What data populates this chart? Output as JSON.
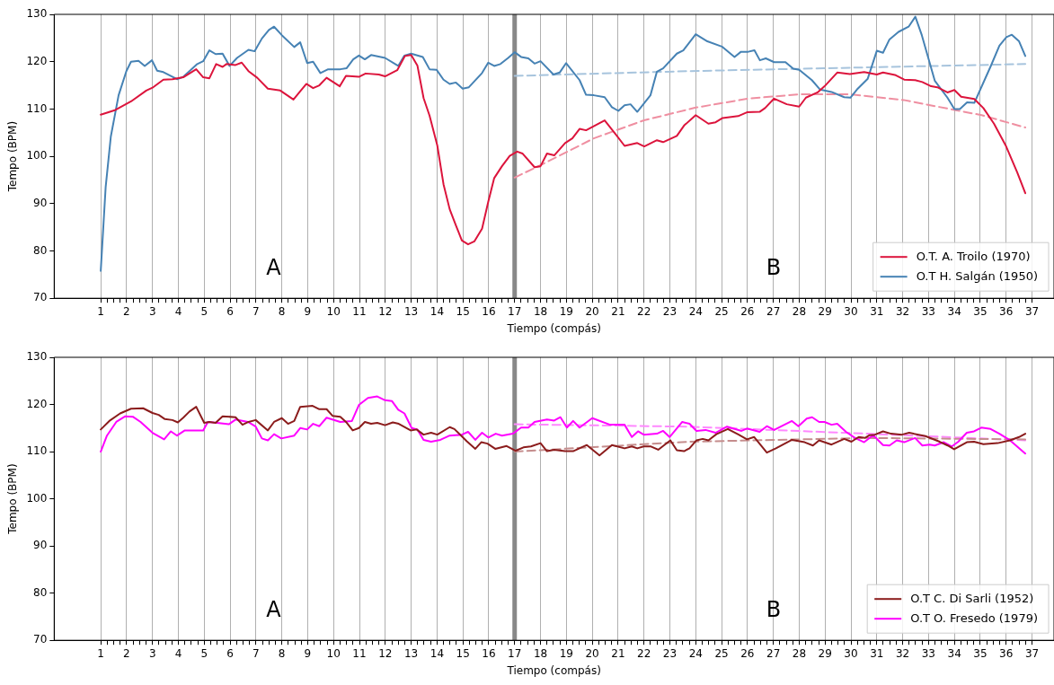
{
  "chart_data": [
    {
      "type": "line",
      "xlabel": "Tiempo (compás)",
      "ylabel": "Tempo (BPM)",
      "xlim": [
        -0.8,
        37.85
      ],
      "ylim": [
        70,
        130
      ],
      "yticks": [
        70,
        80,
        90,
        100,
        110,
        120,
        130
      ],
      "xticks": [
        1,
        {
          "value": 1.25,
          "label": null
        },
        {
          "value": 1.5,
          "label": null
        },
        {
          "value": 1.75,
          "label": null
        },
        2,
        {
          "value": 2.25,
          "label": null
        },
        {
          "value": 2.5,
          "label": null
        },
        {
          "value": 2.75,
          "label": null
        },
        3,
        {
          "value": 3.25,
          "label": null
        },
        {
          "value": 3.5,
          "label": null
        },
        {
          "value": 3.75,
          "label": null
        },
        4,
        {
          "value": 4.25,
          "label": null
        },
        {
          "value": 4.5,
          "label": null
        },
        {
          "value": 4.75,
          "label": null
        },
        5,
        {
          "value": 5.25,
          "label": null
        },
        {
          "value": 5.5,
          "label": null
        },
        {
          "value": 5.75,
          "label": null
        },
        6,
        {
          "value": 6.25,
          "label": null
        },
        {
          "value": 6.5,
          "label": null
        },
        {
          "value": 6.75,
          "label": null
        },
        7,
        {
          "value": 7.25,
          "label": null
        },
        {
          "value": 7.5,
          "label": null
        },
        {
          "value": 7.75,
          "label": null
        },
        8,
        {
          "value": 8.25,
          "label": null
        },
        {
          "value": 8.5,
          "label": null
        },
        {
          "value": 8.75,
          "label": null
        },
        9,
        {
          "value": 9.25,
          "label": null
        },
        {
          "value": 9.5,
          "label": null
        },
        {
          "value": 9.75,
          "label": null
        },
        10,
        {
          "value": 10.25,
          "label": null
        },
        {
          "value": 10.5,
          "label": null
        },
        {
          "value": 10.75,
          "label": null
        },
        11,
        {
          "value": 11.25,
          "label": null
        },
        {
          "value": 11.5,
          "label": null
        },
        {
          "value": 11.75,
          "label": null
        },
        12,
        {
          "value": 12.25,
          "label": null
        },
        {
          "value": 12.5,
          "label": null
        },
        {
          "value": 12.75,
          "label": null
        },
        13,
        {
          "value": 13.25,
          "label": null
        },
        {
          "value": 13.5,
          "label": null
        },
        {
          "value": 13.75,
          "label": null
        },
        14,
        {
          "value": 14.25,
          "label": null
        },
        {
          "value": 14.5,
          "label": null
        },
        {
          "value": 14.75,
          "label": null
        },
        15,
        {
          "value": 15.25,
          "label": null
        },
        {
          "value": 15.5,
          "label": null
        },
        {
          "value": 15.75,
          "label": null
        },
        16,
        {
          "value": 16.25,
          "label": null
        },
        {
          "value": 16.5,
          "label": null
        },
        {
          "value": 16.75,
          "label": null
        },
        17,
        {
          "value": 17.25,
          "label": null
        },
        {
          "value": 17.5,
          "label": null
        },
        {
          "value": 17.75,
          "label": null
        },
        18,
        {
          "value": 18.25,
          "label": null
        },
        {
          "value": 18.5,
          "label": null
        },
        {
          "value": 18.75,
          "label": null
        },
        19,
        {
          "value": 19.25,
          "label": null
        },
        {
          "value": 19.5,
          "label": null
        },
        {
          "value": 19.75,
          "label": null
        },
        20,
        {
          "value": 20.25,
          "label": null
        },
        {
          "value": 20.5,
          "label": null
        },
        {
          "value": 20.75,
          "label": null
        },
        21,
        {
          "value": 21.25,
          "label": null
        },
        {
          "value": 21.5,
          "label": null
        },
        {
          "value": 21.75,
          "label": null
        },
        22,
        {
          "value": 22.25,
          "label": null
        },
        {
          "value": 22.5,
          "label": null
        },
        {
          "value": 22.75,
          "label": null
        },
        23,
        {
          "value": 23.25,
          "label": null
        },
        {
          "value": 23.5,
          "label": null
        },
        {
          "value": 23.75,
          "label": null
        },
        24,
        {
          "value": 24.25,
          "label": null
        },
        {
          "value": 24.5,
          "label": null
        },
        {
          "value": 24.75,
          "label": null
        },
        25,
        {
          "value": 25.25,
          "label": null
        },
        {
          "value": 25.5,
          "label": null
        },
        {
          "value": 25.75,
          "label": null
        },
        26,
        {
          "value": 26.25,
          "label": null
        },
        {
          "value": 26.5,
          "label": null
        },
        {
          "value": 26.75,
          "label": null
        },
        27,
        {
          "value": 27.25,
          "label": null
        },
        {
          "value": 27.5,
          "label": null
        },
        {
          "value": 27.75,
          "label": null
        },
        28,
        {
          "value": 28.25,
          "label": null
        },
        {
          "value": 28.5,
          "label": null
        },
        {
          "value": 28.75,
          "label": null
        },
        29,
        {
          "value": 29.25,
          "label": null
        },
        {
          "value": 29.5,
          "label": null
        },
        {
          "value": 29.75,
          "label": null
        },
        30,
        {
          "value": 30.25,
          "label": null
        },
        {
          "value": 30.5,
          "label": null
        },
        {
          "value": 30.75,
          "label": null
        },
        31,
        {
          "value": 31.25,
          "label": null
        },
        {
          "value": 31.5,
          "label": null
        },
        {
          "value": 31.75,
          "label": null
        },
        32,
        {
          "value": 32.25,
          "label": null
        },
        {
          "value": 32.5,
          "label": null
        },
        {
          "value": 32.75,
          "label": null
        },
        33,
        {
          "value": 33.25,
          "label": null
        },
        {
          "value": 33.5,
          "label": null
        },
        {
          "value": 33.75,
          "label": null
        },
        34,
        {
          "value": 34.25,
          "label": null
        },
        {
          "value": 34.5,
          "label": null
        },
        {
          "value": 34.75,
          "label": null
        },
        35,
        {
          "value": 35.25,
          "label": null
        },
        {
          "value": 35.5,
          "label": null
        },
        {
          "value": 35.75,
          "label": null
        },
        36,
        {
          "value": 36.25,
          "label": null
        },
        {
          "value": 36.5,
          "label": null
        },
        {
          "value": 36.75,
          "label": null
        },
        37
      ],
      "grid": "x",
      "legend": "bottom right",
      "marker": "none",
      "line_style": "solid",
      "ref_lines": [
        {
          "axis": "x",
          "value": 17,
          "color": "#888888"
        }
      ],
      "annotations": [
        "A",
        "B"
      ],
      "series": [
        {
          "name": "O.T. A. Troilo (1970)",
          "color": "#dc143c",
          "x": [
            1,
            1.57,
            2.17,
            2.76,
            3,
            3.42,
            3.77,
            4.19,
            4.69,
            4.96,
            5.2,
            5.46,
            5.71,
            5.86,
            6.21,
            6.45,
            6.71,
            7.05,
            7.46,
            7.94,
            8.45,
            8.69,
            8.95,
            9.21,
            9.45,
            9.73,
            10.24,
            10.48,
            10.98,
            11.24,
            11.75,
            11.99,
            12.46,
            12.76,
            13,
            13.24,
            13.48,
            13.71,
            14.01,
            14.25,
            14.49,
            14.73,
            14.96,
            15.2,
            15.44,
            15.74,
            15.98,
            16.21,
            16.51,
            16.81,
            17.1,
            17.3,
            17.77,
            18,
            18.25,
            18.53,
            18.95,
            19.23,
            19.51,
            19.76,
            20.48,
            20.9,
            21.25,
            21.74,
            22.01,
            22.5,
            22.74,
            23.27,
            23.55,
            24,
            24.49,
            24.77,
            25.04,
            25.64,
            25.98,
            26.47,
            26.68,
            27.03,
            27.52,
            28,
            28.26,
            28.71,
            28.98,
            29.47,
            29.96,
            30.51,
            31,
            31.24,
            31.7,
            32.06,
            32.48,
            32.76,
            33.1,
            33.34,
            33.73,
            34,
            34.26,
            34.77,
            35.12,
            35.53,
            36,
            36.43,
            36.74
          ],
          "values": [
            108.8,
            109.8,
            111.6,
            113.9,
            114.5,
            116.2,
            116.3,
            116.7,
            118.4,
            116.7,
            116.5,
            119.5,
            118.9,
            119.5,
            119.3,
            119.8,
            118,
            116.6,
            114.3,
            113.9,
            112,
            113.6,
            115.3,
            114.4,
            115,
            116.6,
            114.8,
            117,
            116.8,
            117.5,
            117.3,
            116.9,
            118.2,
            121.2,
            121.4,
            119.2,
            112.3,
            108.6,
            102.3,
            94.1,
            88.8,
            85.4,
            82.2,
            81.4,
            82,
            84.7,
            90.4,
            95.4,
            97.9,
            100.1,
            101,
            100.6,
            97.7,
            97.9,
            100.6,
            100.2,
            102.8,
            103.8,
            105.8,
            105.5,
            107.6,
            104.7,
            102.2,
            102.8,
            102.1,
            103.4,
            103,
            104.3,
            106.5,
            108.7,
            106.9,
            107.2,
            108.1,
            108.5,
            109.3,
            109.4,
            110.2,
            112.2,
            111,
            110.5,
            112.4,
            113.5,
            114.8,
            117.7,
            117.4,
            117.8,
            117.3,
            117.7,
            117.2,
            116.2,
            116.1,
            115.7,
            114.8,
            114.6,
            113.5,
            114,
            112.6,
            112.1,
            110.2,
            106.9,
            102.1,
            96.6,
            92.2
          ]
        },
        {
          "name": "O.T H. Salgán (1950)",
          "color": "#4682b4",
          "x": [
            1,
            1.19,
            1.39,
            1.69,
            1.99,
            2.17,
            2.46,
            2.7,
            2.98,
            3.18,
            3.42,
            3.95,
            4.19,
            4.43,
            4.73,
            4.96,
            5.2,
            5.44,
            5.71,
            5.98,
            6.27,
            6.71,
            6.95,
            7.23,
            7.5,
            7.7,
            8,
            8.48,
            8.71,
            8.98,
            9.21,
            9.49,
            9.79,
            10.26,
            10.5,
            10.76,
            10.98,
            11.21,
            11.45,
            11.99,
            12.5,
            12.74,
            13,
            13.45,
            13.71,
            13.98,
            14.25,
            14.49,
            14.73,
            14.99,
            15.23,
            15.74,
            15.98,
            16.21,
            16.45,
            16.75,
            17,
            17.25,
            17.53,
            17.77,
            18,
            18.5,
            18.74,
            18.99,
            19.51,
            19.76,
            20.06,
            20.48,
            20.76,
            21.01,
            21.25,
            21.48,
            21.74,
            22.25,
            22.5,
            22.74,
            23.27,
            23.52,
            24,
            24.45,
            25.01,
            25.5,
            25.75,
            26.03,
            26.27,
            26.48,
            26.71,
            27.03,
            27.47,
            27.77,
            28,
            28.49,
            28.81,
            29.25,
            29.74,
            29.98,
            30.23,
            30.65,
            31,
            31.24,
            31.49,
            31.84,
            32.23,
            32.49,
            32.74,
            33.24,
            33.73,
            34,
            34.21,
            34.49,
            34.77,
            35.4,
            35.74,
            36.01,
            36.22,
            36.5,
            36.74
          ],
          "values": [
            75.8,
            93.5,
            104.2,
            112.9,
            118,
            120,
            120.2,
            119.1,
            120.3,
            118.1,
            117.8,
            116.3,
            116.8,
            118,
            119.5,
            120.1,
            122.4,
            121.6,
            121.7,
            119.1,
            120.8,
            122.5,
            122.2,
            124.9,
            126.7,
            127.4,
            125.6,
            123.1,
            124.1,
            119.7,
            120,
            117.6,
            118.4,
            118.4,
            118.6,
            120.5,
            121.3,
            120.5,
            121.4,
            120.8,
            119.1,
            121.3,
            121.7,
            121,
            118.4,
            118.3,
            116.2,
            115.3,
            115.6,
            114.3,
            114.6,
            117.6,
            119.8,
            119.1,
            119.5,
            120.8,
            122,
            121,
            120.7,
            119.6,
            120.1,
            117.3,
            117.7,
            119.7,
            116.1,
            113,
            112.9,
            112.5,
            110.4,
            109.6,
            110.8,
            111,
            109.4,
            112.9,
            117.9,
            118.6,
            121.7,
            122.4,
            125.8,
            124.3,
            123.2,
            121,
            122.1,
            122.1,
            122.4,
            120.3,
            120.7,
            119.9,
            119.9,
            118.5,
            118.3,
            116.1,
            114.1,
            113.6,
            112.5,
            112.4,
            114.1,
            116.4,
            122.3,
            121.9,
            124.7,
            126.3,
            127.4,
            129.5,
            125.6,
            116,
            112.4,
            110,
            110,
            111.4,
            111.3,
            119,
            123.4,
            125.2,
            125.7,
            124.3,
            121.2
          ]
        },
        {
          "color": "#ef8fa1",
          "line_style": "dashed",
          "x": [
            17,
            18.1,
            20.06,
            22,
            24,
            26.04,
            28,
            30,
            32.04,
            34,
            35.05,
            36.74
          ],
          "values": [
            95.5,
            98.4,
            103.8,
            107.6,
            110.3,
            112.2,
            113.1,
            113.1,
            111.9,
            109.8,
            108.7,
            106.1
          ]
        },
        {
          "color": "#a7c4dd",
          "line_style": "dashed",
          "x": [
            17,
            23.7,
            30.65,
            36.74
          ],
          "values": [
            117,
            118,
            118.8,
            119.5
          ]
        }
      ]
    },
    {
      "type": "line",
      "xlabel": "Tiempo (compás)",
      "ylabel": "Tempo (BPM)",
      "xlim": [
        -0.8,
        37.85
      ],
      "ylim": [
        70,
        130
      ],
      "yticks": [
        70,
        80,
        90,
        100,
        110,
        120,
        130
      ],
      "xticks": [
        1,
        {
          "value": 1.25,
          "label": null
        },
        {
          "value": 1.5,
          "label": null
        },
        {
          "value": 1.75,
          "label": null
        },
        2,
        {
          "value": 2.25,
          "label": null
        },
        {
          "value": 2.5,
          "label": null
        },
        {
          "value": 2.75,
          "label": null
        },
        3,
        {
          "value": 3.25,
          "label": null
        },
        {
          "value": 3.5,
          "label": null
        },
        {
          "value": 3.75,
          "label": null
        },
        4,
        {
          "value": 4.25,
          "label": null
        },
        {
          "value": 4.5,
          "label": null
        },
        {
          "value": 4.75,
          "label": null
        },
        5,
        {
          "value": 5.25,
          "label": null
        },
        {
          "value": 5.5,
          "label": null
        },
        {
          "value": 5.75,
          "label": null
        },
        6,
        {
          "value": 6.25,
          "label": null
        },
        {
          "value": 6.5,
          "label": null
        },
        {
          "value": 6.75,
          "label": null
        },
        7,
        {
          "value": 7.25,
          "label": null
        },
        {
          "value": 7.5,
          "label": null
        },
        {
          "value": 7.75,
          "label": null
        },
        8,
        {
          "value": 8.25,
          "label": null
        },
        {
          "value": 8.5,
          "label": null
        },
        {
          "value": 8.75,
          "label": null
        },
        9,
        {
          "value": 9.25,
          "label": null
        },
        {
          "value": 9.5,
          "label": null
        },
        {
          "value": 9.75,
          "label": null
        },
        10,
        {
          "value": 10.25,
          "label": null
        },
        {
          "value": 10.5,
          "label": null
        },
        {
          "value": 10.75,
          "label": null
        },
        11,
        {
          "value": 11.25,
          "label": null
        },
        {
          "value": 11.5,
          "label": null
        },
        {
          "value": 11.75,
          "label": null
        },
        12,
        {
          "value": 12.25,
          "label": null
        },
        {
          "value": 12.5,
          "label": null
        },
        {
          "value": 12.75,
          "label": null
        },
        13,
        {
          "value": 13.25,
          "label": null
        },
        {
          "value": 13.5,
          "label": null
        },
        {
          "value": 13.75,
          "label": null
        },
        14,
        {
          "value": 14.25,
          "label": null
        },
        {
          "value": 14.5,
          "label": null
        },
        {
          "value": 14.75,
          "label": null
        },
        15,
        {
          "value": 15.25,
          "label": null
        },
        {
          "value": 15.5,
          "label": null
        },
        {
          "value": 15.75,
          "label": null
        },
        16,
        {
          "value": 16.25,
          "label": null
        },
        {
          "value": 16.5,
          "label": null
        },
        {
          "value": 16.75,
          "label": null
        },
        17,
        {
          "value": 17.25,
          "label": null
        },
        {
          "value": 17.5,
          "label": null
        },
        {
          "value": 17.75,
          "label": null
        },
        18,
        {
          "value": 18.25,
          "label": null
        },
        {
          "value": 18.5,
          "label": null
        },
        {
          "value": 18.75,
          "label": null
        },
        19,
        {
          "value": 19.25,
          "label": null
        },
        {
          "value": 19.5,
          "label": null
        },
        {
          "value": 19.75,
          "label": null
        },
        20,
        {
          "value": 20.25,
          "label": null
        },
        {
          "value": 20.5,
          "label": null
        },
        {
          "value": 20.75,
          "label": null
        },
        21,
        {
          "value": 21.25,
          "label": null
        },
        {
          "value": 21.5,
          "label": null
        },
        {
          "value": 21.75,
          "label": null
        },
        22,
        {
          "value": 22.25,
          "label": null
        },
        {
          "value": 22.5,
          "label": null
        },
        {
          "value": 22.75,
          "label": null
        },
        23,
        {
          "value": 23.25,
          "label": null
        },
        {
          "value": 23.5,
          "label": null
        },
        {
          "value": 23.75,
          "label": null
        },
        24,
        {
          "value": 24.25,
          "label": null
        },
        {
          "value": 24.5,
          "label": null
        },
        {
          "value": 24.75,
          "label": null
        },
        25,
        {
          "value": 25.25,
          "label": null
        },
        {
          "value": 25.5,
          "label": null
        },
        {
          "value": 25.75,
          "label": null
        },
        26,
        {
          "value": 26.25,
          "label": null
        },
        {
          "value": 26.5,
          "label": null
        },
        {
          "value": 26.75,
          "label": null
        },
        27,
        {
          "value": 27.25,
          "label": null
        },
        {
          "value": 27.5,
          "label": null
        },
        {
          "value": 27.75,
          "label": null
        },
        28,
        {
          "value": 28.25,
          "label": null
        },
        {
          "value": 28.5,
          "label": null
        },
        {
          "value": 28.75,
          "label": null
        },
        29,
        {
          "value": 29.25,
          "label": null
        },
        {
          "value": 29.5,
          "label": null
        },
        {
          "value": 29.75,
          "label": null
        },
        30,
        {
          "value": 30.25,
          "label": null
        },
        {
          "value": 30.5,
          "label": null
        },
        {
          "value": 30.75,
          "label": null
        },
        31,
        {
          "value": 31.25,
          "label": null
        },
        {
          "value": 31.5,
          "label": null
        },
        {
          "value": 31.75,
          "label": null
        },
        32,
        {
          "value": 32.25,
          "label": null
        },
        {
          "value": 32.5,
          "label": null
        },
        {
          "value": 32.75,
          "label": null
        },
        33,
        {
          "value": 33.25,
          "label": null
        },
        {
          "value": 33.5,
          "label": null
        },
        {
          "value": 33.75,
          "label": null
        },
        34,
        {
          "value": 34.25,
          "label": null
        },
        {
          "value": 34.5,
          "label": null
        },
        {
          "value": 34.75,
          "label": null
        },
        35,
        {
          "value": 35.25,
          "label": null
        },
        {
          "value": 35.5,
          "label": null
        },
        {
          "value": 35.75,
          "label": null
        },
        36,
        {
          "value": 36.25,
          "label": null
        },
        {
          "value": 36.5,
          "label": null
        },
        {
          "value": 36.75,
          "label": null
        },
        37
      ],
      "grid": "x",
      "legend": "bottom right",
      "marker": "none",
      "line_style": "solid",
      "ref_lines": [
        {
          "axis": "x",
          "value": 17,
          "color": "#888888"
        }
      ],
      "annotations": [
        "A",
        "B"
      ],
      "series": [
        {
          "name": "O.T C. Di Sarli (1952)",
          "color": "#8b1c1c",
          "x": [
            1,
            1.33,
            1.75,
            2.17,
            2.64,
            3,
            3.24,
            3.48,
            3.77,
            3.98,
            4.19,
            4.43,
            4.69,
            5,
            5.2,
            5.44,
            5.71,
            6.21,
            6.48,
            6.71,
            6.99,
            7.46,
            7.7,
            8,
            8.24,
            8.48,
            8.71,
            9.19,
            9.45,
            9.73,
            9.96,
            10.26,
            10.48,
            10.74,
            10.98,
            11.21,
            11.45,
            11.69,
            11.99,
            12.29,
            12.52,
            12.98,
            13.21,
            13.48,
            13.77,
            14.01,
            14.49,
            14.67,
            15.15,
            15.48,
            15.71,
            15.95,
            16.25,
            16.69,
            17.04,
            17.34,
            17.63,
            18,
            18.25,
            18.53,
            18.95,
            19.26,
            19.79,
            20.28,
            20.76,
            21.25,
            21.53,
            21.74,
            21.99,
            22.27,
            22.55,
            23.02,
            23.27,
            23.55,
            23.76,
            24.03,
            24.27,
            24.49,
            24.8,
            25.24,
            25.66,
            25.98,
            26.26,
            26.75,
            27.1,
            27.72,
            28.21,
            28.53,
            28.77,
            29.25,
            29.74,
            30.02,
            30.3,
            30.54,
            30.72,
            30.93,
            31.24,
            31.55,
            31.97,
            32.25,
            32.88,
            33.43,
            33.74,
            33.99,
            34.48,
            34.76,
            35.12,
            35.67,
            36.15,
            36.5,
            36.74
          ],
          "values": [
            114.7,
            116.5,
            118.1,
            119.1,
            119.2,
            118.2,
            117.8,
            116.9,
            116.7,
            116.2,
            117.2,
            118.5,
            119.5,
            116.1,
            116.3,
            116.1,
            117.5,
            117.3,
            115.7,
            116.3,
            116.7,
            114.5,
            116.3,
            117.1,
            115.9,
            116.5,
            119.5,
            119.7,
            119,
            119,
            117.6,
            117.4,
            116.3,
            114.5,
            115,
            116.3,
            115.9,
            116.1,
            115.6,
            116.2,
            115.9,
            114.5,
            114.7,
            113.6,
            114,
            113.6,
            115.2,
            114.8,
            112.2,
            110.6,
            112,
            111.7,
            110.6,
            111.2,
            110.2,
            110.9,
            111.1,
            111.8,
            110.1,
            110.4,
            110.1,
            110.1,
            111.4,
            109.2,
            111.4,
            110.7,
            111.1,
            110.7,
            111.1,
            111.1,
            110.4,
            112.4,
            110.3,
            110.1,
            110.7,
            112.4,
            112.7,
            112.4,
            113.7,
            114.8,
            113.6,
            112.6,
            113.1,
            109.8,
            110.7,
            112.5,
            112,
            111.3,
            112.4,
            111.5,
            112.7,
            112.1,
            113.1,
            112.9,
            113.5,
            113.6,
            114.3,
            113.8,
            113.6,
            114,
            113.3,
            112.1,
            111.3,
            110.5,
            112,
            112.1,
            111.6,
            111.8,
            112.4,
            113.1,
            113.8
          ]
        },
        {
          "name": "O.T O. Fresedo (1979)",
          "color": "#ff00ff",
          "x": [
            1,
            1.24,
            1.6,
            1.95,
            2.24,
            2.54,
            3,
            3.45,
            3.71,
            3.95,
            4.25,
            4.96,
            5.14,
            5.5,
            5.95,
            6.21,
            6.69,
            6.99,
            7.23,
            7.46,
            7.7,
            7.98,
            8.48,
            8.71,
            8.98,
            9.21,
            9.45,
            9.73,
            10.26,
            10.71,
            10.98,
            11.33,
            11.69,
            11.99,
            12.26,
            12.5,
            12.74,
            13.02,
            13.24,
            13.48,
            13.77,
            14.13,
            14.49,
            14.96,
            15.2,
            15.48,
            15.74,
            15.98,
            16.27,
            16.51,
            16.93,
            17.25,
            17.53,
            17.77,
            18.25,
            18.53,
            18.77,
            19.02,
            19.26,
            19.51,
            20,
            20.69,
            21.25,
            21.53,
            21.77,
            21.99,
            22.5,
            22.74,
            22.99,
            23.48,
            23.76,
            24.03,
            24.38,
            24.77,
            25.21,
            25.77,
            25.98,
            26.47,
            26.75,
            27.03,
            27.72,
            27.97,
            28.29,
            28.5,
            28.77,
            28.98,
            29.25,
            29.47,
            29.81,
            30.16,
            30.51,
            30.86,
            31.24,
            31.49,
            31.77,
            32.06,
            32.48,
            32.76,
            33.04,
            33.24,
            33.59,
            33.9,
            34.15,
            34.48,
            34.76,
            35.04,
            35.4,
            35.74,
            36.15,
            36.74
          ],
          "values": [
            110,
            113.4,
            116.3,
            117.5,
            117.4,
            116.3,
            114,
            112.6,
            114.3,
            113.4,
            114.5,
            114.5,
            116.3,
            116.1,
            115.8,
            116.8,
            116.3,
            115.3,
            112.8,
            112.4,
            113.7,
            112.8,
            113.4,
            115,
            114.7,
            115.9,
            115.4,
            117.2,
            116.3,
            116.5,
            119.9,
            121.4,
            121.7,
            120.9,
            120.7,
            118.9,
            118.1,
            115,
            114.7,
            112.5,
            112.1,
            112.5,
            113.4,
            113.6,
            114.2,
            112.5,
            114,
            113,
            113.8,
            113.4,
            113.8,
            115.1,
            115.1,
            116.3,
            116.8,
            116.6,
            117.3,
            115.1,
            116.5,
            115.1,
            117.1,
            115.7,
            115.7,
            113.1,
            114.3,
            113.6,
            113.8,
            114.4,
            113.1,
            116.3,
            115.9,
            114.4,
            114.6,
            114,
            115.3,
            114.4,
            114.9,
            114.2,
            115.4,
            114.6,
            116.5,
            115.4,
            117,
            117.3,
            116.3,
            116.3,
            115.7,
            115.9,
            114.2,
            112.9,
            112,
            113.5,
            111.4,
            111.3,
            112.4,
            112,
            112.9,
            111.3,
            111.5,
            111.3,
            112,
            111.1,
            112.1,
            114,
            114.3,
            115.1,
            114.8,
            113.8,
            112.4,
            109.6
          ]
        },
        {
          "color": "#c58d8d",
          "line_style": "dashed",
          "x": [
            17,
            23.7,
            30.65,
            36.74
          ],
          "values": [
            110,
            112.1,
            112.9,
            112.6
          ]
        },
        {
          "color": "#ff88ff",
          "line_style": "dashed",
          "x": [
            17,
            23.7,
            30.65,
            36.74
          ],
          "values": [
            115.8,
            115.3,
            113.8,
            112.4
          ]
        }
      ]
    }
  ]
}
